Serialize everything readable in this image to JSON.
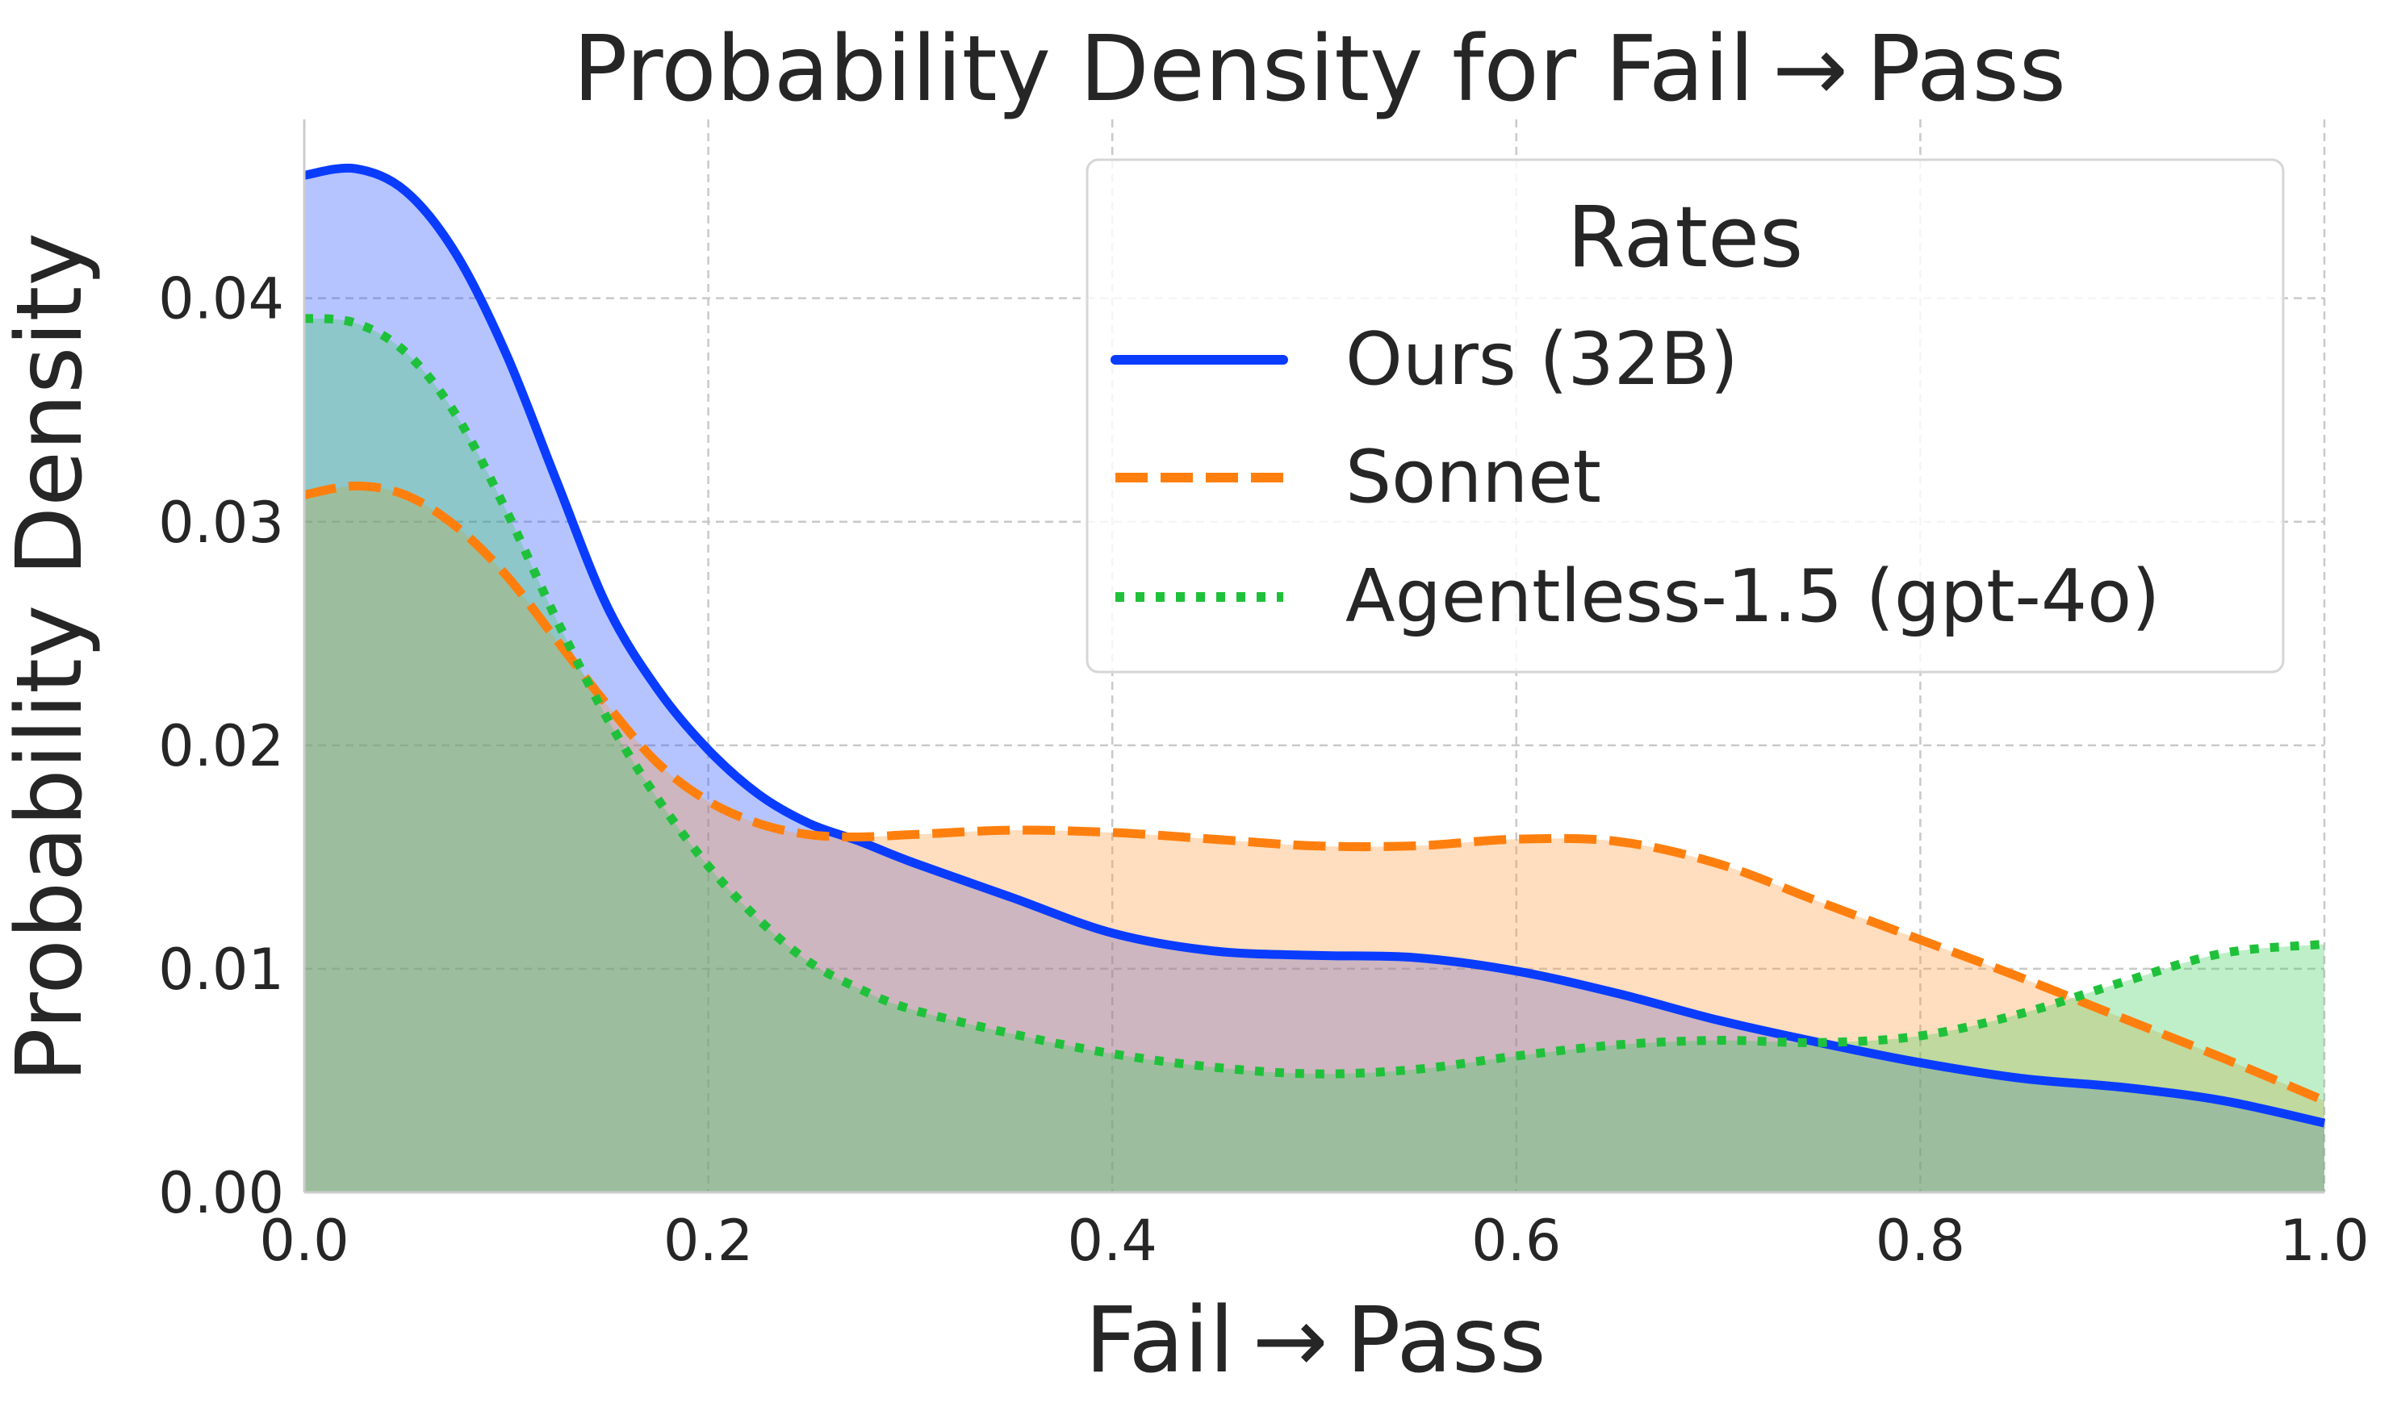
{
  "chart_data": {
    "type": "area",
    "title": "Probability Density for Fail → Pass",
    "xlabel": "Fail → Pass",
    "ylabel": "Probability Density",
    "xlim": [
      0,
      1
    ],
    "ylim": [
      0,
      0.048
    ],
    "xticks": [
      0.0,
      0.2,
      0.4,
      0.6,
      0.8,
      1.0
    ],
    "xtick_labels": [
      "0.0",
      "0.2",
      "0.4",
      "0.6",
      "0.8",
      "1.0"
    ],
    "yticks": [
      0.0,
      0.01,
      0.02,
      0.03,
      0.04
    ],
    "ytick_labels": [
      "0.00",
      "0.01",
      "0.02",
      "0.03",
      "0.04"
    ],
    "grid": true,
    "legend": {
      "title": "Rates",
      "position": "upper-right"
    },
    "series": [
      {
        "name": "Ours (32B)",
        "color": "#0a3cff",
        "fill": "#1f4cff",
        "linestyle": "solid",
        "x": [
          0.0,
          0.025,
          0.05,
          0.075,
          0.1,
          0.125,
          0.15,
          0.175,
          0.2,
          0.225,
          0.25,
          0.275,
          0.3,
          0.35,
          0.4,
          0.45,
          0.5,
          0.55,
          0.6,
          0.65,
          0.7,
          0.75,
          0.8,
          0.85,
          0.9,
          0.95,
          1.0
        ],
        "values": [
          0.0455,
          0.0458,
          0.0448,
          0.042,
          0.0375,
          0.0318,
          0.0262,
          0.0225,
          0.0198,
          0.0178,
          0.0165,
          0.0157,
          0.0148,
          0.0132,
          0.0116,
          0.0108,
          0.0106,
          0.0105,
          0.0099,
          0.0089,
          0.0077,
          0.0067,
          0.0058,
          0.0051,
          0.0047,
          0.0041,
          0.0031
        ]
      },
      {
        "name": "Sonnet",
        "color": "#ff7f0e",
        "fill": "#ff9a3c",
        "linestyle": "dashed",
        "x": [
          0.0,
          0.025,
          0.05,
          0.075,
          0.1,
          0.125,
          0.15,
          0.175,
          0.2,
          0.225,
          0.25,
          0.275,
          0.3,
          0.35,
          0.4,
          0.45,
          0.5,
          0.55,
          0.6,
          0.65,
          0.7,
          0.75,
          0.8,
          0.85,
          0.9,
          0.95,
          1.0
        ],
        "values": [
          0.0312,
          0.0316,
          0.0312,
          0.0298,
          0.0276,
          0.0247,
          0.0218,
          0.0192,
          0.0175,
          0.0165,
          0.016,
          0.0159,
          0.016,
          0.0162,
          0.0161,
          0.0158,
          0.0155,
          0.0155,
          0.0158,
          0.0157,
          0.0147,
          0.013,
          0.0113,
          0.0096,
          0.0078,
          0.006,
          0.0041
        ]
      },
      {
        "name": "Agentless-1.5 (gpt-4o)",
        "color": "#1fc13a",
        "fill": "#3ccf5c",
        "linestyle": "dotted",
        "x": [
          0.0,
          0.025,
          0.05,
          0.075,
          0.1,
          0.125,
          0.15,
          0.175,
          0.2,
          0.225,
          0.25,
          0.275,
          0.3,
          0.35,
          0.4,
          0.45,
          0.5,
          0.55,
          0.6,
          0.65,
          0.7,
          0.75,
          0.8,
          0.85,
          0.9,
          0.95,
          1.0
        ],
        "values": [
          0.0391,
          0.0389,
          0.0376,
          0.0348,
          0.0305,
          0.0256,
          0.0212,
          0.0176,
          0.0146,
          0.0122,
          0.0103,
          0.0091,
          0.0082,
          0.0071,
          0.0062,
          0.0056,
          0.0053,
          0.0055,
          0.0061,
          0.0066,
          0.0068,
          0.0067,
          0.007,
          0.008,
          0.0094,
          0.0107,
          0.0111
        ]
      }
    ]
  }
}
